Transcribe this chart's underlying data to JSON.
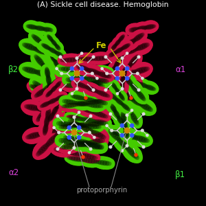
{
  "bg_color": "#000000",
  "title": "(A) Sickle cell disease. Hemoglobin",
  "title_color": "#ffffff",
  "title_fontsize": 7.8,
  "proto_label": "protoporphyrin",
  "proto_color": "#aaaaaa",
  "proto_fontsize": 7.2,
  "fe_label": "Fe",
  "fe_color": "#cccc00",
  "fe_fontsize": 8.5,
  "label_alpha2": "α2",
  "label_alpha1": "α1",
  "label_beta1": "β1",
  "label_beta2": "β2",
  "label_color_alpha": "#dd44dd",
  "label_color_beta": "#44ee44",
  "label_fontsize": 8.5,
  "green": "#44cc00",
  "red": "#cc1144",
  "dark_green": "#228800",
  "dark_red": "#880022"
}
